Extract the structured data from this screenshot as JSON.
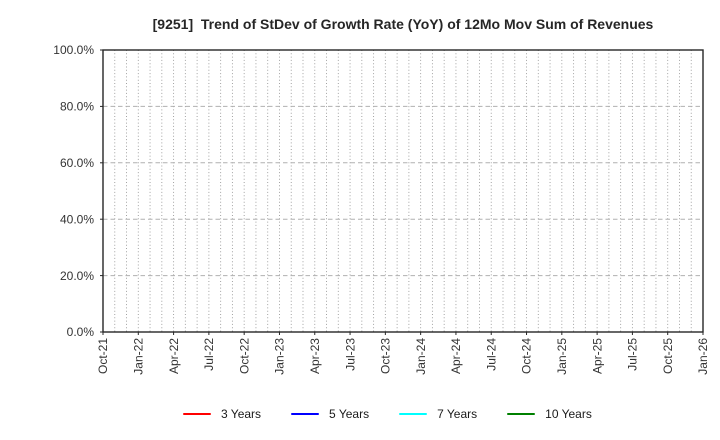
{
  "chart_data": {
    "type": "line",
    "title": "[9251]  Trend of StDev of Growth Rate (YoY) of 12Mo Mov Sum of Revenues",
    "x_tick_labels": [
      "Oct-21",
      "Jan-22",
      "Apr-22",
      "Jul-22",
      "Oct-22",
      "Jan-23",
      "Apr-23",
      "Jul-23",
      "Oct-23",
      "Jan-24",
      "Apr-24",
      "Jul-24",
      "Oct-24",
      "Jan-25",
      "Apr-25",
      "Jul-25",
      "Oct-25",
      "Jan-26"
    ],
    "x_range": [
      "Oct-21",
      "Jan-26"
    ],
    "months_total": 51,
    "y_tick_labels": [
      "0.0%",
      "20.0%",
      "40.0%",
      "60.0%",
      "80.0%",
      "100.0%"
    ],
    "y_tick_values": [
      0,
      20,
      40,
      60,
      80,
      100
    ],
    "ylim": [
      0,
      100
    ],
    "y_unit": "percent",
    "grid": {
      "vertical": "monthly, dotted",
      "horizontal": "every 20%, dashed"
    },
    "legend_position": "bottom-center",
    "plotted_data_visible": false,
    "series": [
      {
        "name": "3 Years",
        "color": "#ff0000",
        "x": [],
        "values": []
      },
      {
        "name": "5 Years",
        "color": "#0000ff",
        "x": [],
        "values": []
      },
      {
        "name": "7 Years",
        "color": "#00ffff",
        "x": [],
        "values": []
      },
      {
        "name": "10 Years",
        "color": "#008000",
        "x": [],
        "values": []
      }
    ]
  },
  "colors": {
    "background": "#ffffff",
    "spine": "#262626",
    "grid_vertical": "#999999",
    "grid_horizontal": "#b0b0b0",
    "title_text": "#262626",
    "tick_text": "#333333",
    "legend_text": "#1a1a1a"
  }
}
